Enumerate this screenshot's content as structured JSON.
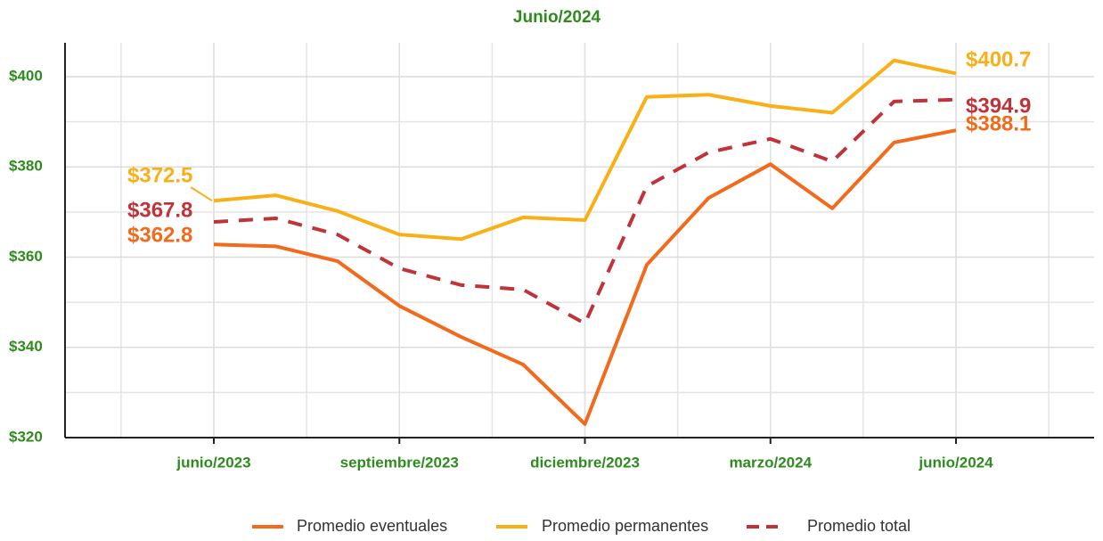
{
  "chart_data": {
    "type": "line",
    "title": "Junio/2024",
    "categories": [
      "junio/2023",
      null,
      null,
      "septiembre/2023",
      null,
      null,
      "diciembre/2023",
      null,
      null,
      "marzo/2024",
      null,
      null,
      "junio/2024"
    ],
    "series": [
      {
        "name": "Promedio eventuales",
        "color": "#f26a1b",
        "dashed": false,
        "values": [
          362.8,
          362.4,
          359.1,
          349.2,
          342.3,
          336.2,
          323,
          358.3,
          373.1,
          380.6,
          370.8,
          385.4,
          388.1
        ],
        "value_labels": [
          "$362.8",
          null,
          null,
          null,
          null,
          null,
          null,
          null,
          null,
          null,
          null,
          null,
          "$388.1"
        ]
      },
      {
        "name": "Promedio permanentes",
        "color": "#f9b016",
        "dashed": false,
        "values": [
          372.5,
          373.7,
          370.2,
          365,
          364,
          368.8,
          368.2,
          395.5,
          396,
          393.5,
          392,
          403.6,
          400.7
        ],
        "value_labels": [
          "$372.5",
          null,
          null,
          null,
          null,
          null,
          null,
          null,
          null,
          null,
          null,
          null,
          "$400.7"
        ]
      },
      {
        "name": "Promedio total",
        "color": "#c1333a",
        "dashed": true,
        "values": [
          367.8,
          368.6,
          365,
          357.5,
          353.8,
          352.8,
          345.3,
          375.7,
          383.2,
          386.2,
          381.2,
          394.5,
          394.9
        ],
        "value_labels": [
          "$367.8",
          null,
          null,
          null,
          null,
          null,
          null,
          null,
          null,
          null,
          null,
          null,
          "$394.9"
        ]
      }
    ],
    "ylim": [
      320,
      407.5
    ],
    "yticks": [
      {
        "value": 320,
        "label": "$320"
      },
      {
        "value": 340,
        "label": "$340"
      },
      {
        "value": 360,
        "label": "$360"
      },
      {
        "value": 380,
        "label": "$380"
      },
      {
        "value": 400,
        "label": "$400"
      }
    ],
    "grid": true
  }
}
